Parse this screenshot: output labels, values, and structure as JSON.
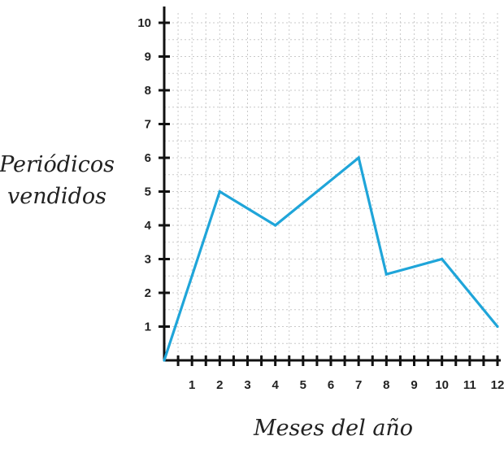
{
  "chart_data": {
    "type": "line",
    "title": "",
    "xlabel": "Meses del año",
    "ylabel_lines": [
      "Periódicos",
      "vendidos"
    ],
    "x_ticks": [
      1,
      2,
      3,
      4,
      5,
      6,
      7,
      8,
      9,
      10,
      11,
      12
    ],
    "y_ticks": [
      1,
      2,
      3,
      4,
      5,
      6,
      7,
      8,
      9,
      10
    ],
    "xlim": [
      0,
      12
    ],
    "ylim": [
      0,
      10
    ],
    "grid": true,
    "series": [
      {
        "x": [
          0,
          2,
          4,
          7,
          8,
          10,
          12
        ],
        "y": [
          0,
          5,
          4,
          6,
          2.55,
          3,
          1
        ],
        "color": "#1fa5d9"
      }
    ]
  }
}
